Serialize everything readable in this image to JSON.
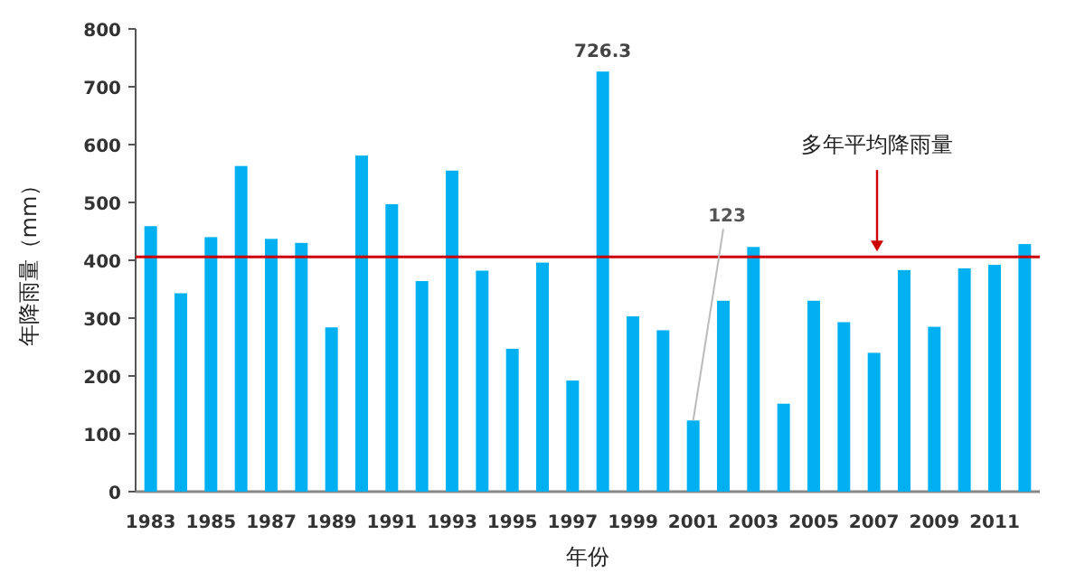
{
  "chart_data": {
    "type": "bar",
    "xlabel": "年份",
    "ylabel": "年降雨量（mm）",
    "categories": [
      "1983",
      null,
      "1985",
      null,
      "1987",
      null,
      "1989",
      null,
      "1991",
      null,
      "1993",
      null,
      "1995",
      null,
      "1997",
      null,
      "1999",
      null,
      "2001",
      null,
      "2003",
      null,
      "2005",
      null,
      "2007",
      null,
      "2009",
      null,
      "2011",
      null
    ],
    "values": [
      459,
      343,
      440,
      563,
      437,
      430,
      284,
      581,
      497,
      364,
      555,
      382,
      247,
      396,
      192,
      726.3,
      303,
      279,
      123,
      330,
      423,
      152,
      330,
      293,
      240,
      383,
      285,
      386,
      392,
      428
    ],
    "value_labels": [
      null,
      null,
      null,
      null,
      null,
      null,
      null,
      null,
      null,
      null,
      null,
      null,
      null,
      null,
      null,
      "726.3",
      null,
      null,
      "123",
      null,
      null,
      null,
      null,
      null,
      null,
      null,
      null,
      null,
      null,
      null
    ],
    "color": "#00b0f0",
    "ylim": [
      0,
      800
    ],
    "yticks": [
      0,
      100,
      200,
      300,
      400,
      500,
      600,
      700,
      800
    ],
    "ref_lines": [
      {
        "axis": "y",
        "value": 406,
        "label": "多年平均降雨量",
        "color": "#cc0000"
      }
    ]
  }
}
